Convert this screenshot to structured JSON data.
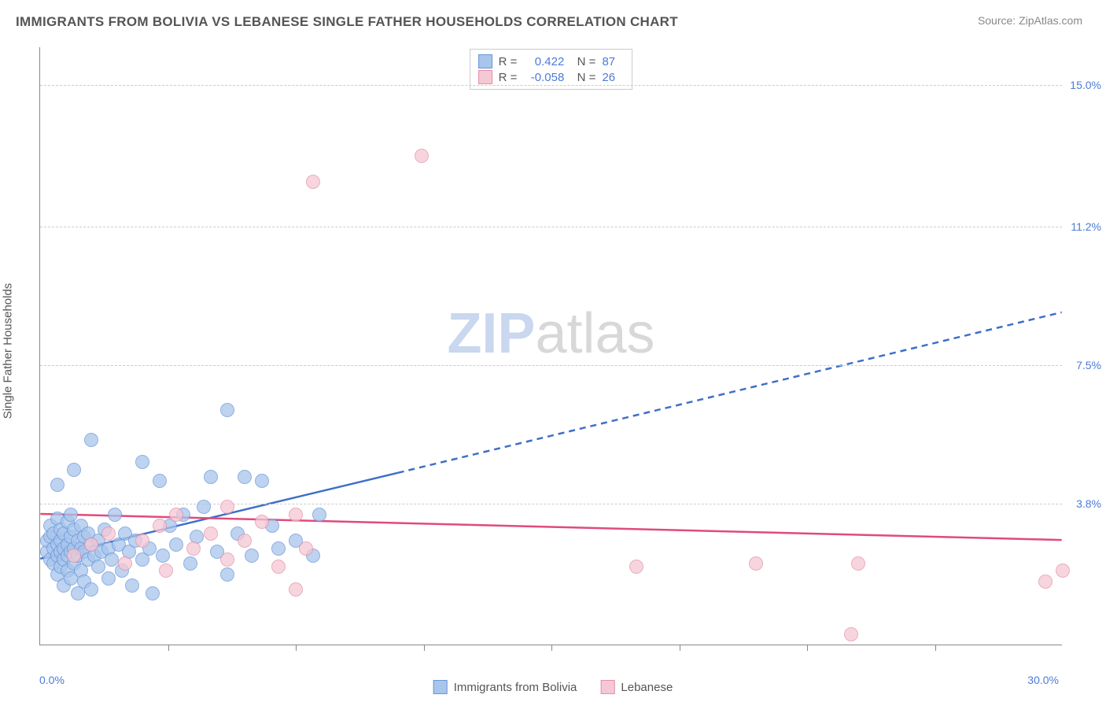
{
  "title": "IMMIGRANTS FROM BOLIVIA VS LEBANESE SINGLE FATHER HOUSEHOLDS CORRELATION CHART",
  "source": "Source: ZipAtlas.com",
  "ylabel": "Single Father Households",
  "watermark_a": "ZIP",
  "watermark_b": "atlas",
  "xlim": [
    0.0,
    30.0
  ],
  "ylim": [
    0.0,
    16.0
  ],
  "y_gridlines": [
    3.8,
    7.5,
    11.2,
    15.0
  ],
  "x_axis_labels": {
    "min": "0.0%",
    "max": "30.0%"
  },
  "xticks": [
    3.75,
    7.5,
    11.25,
    15.0,
    18.75,
    22.5,
    26.25
  ],
  "series": [
    {
      "key": "bolivia",
      "label": "Immigrants from Bolivia",
      "fill": "#a8c5ec",
      "stroke": "#6a97d9",
      "line_color": "#3f6fc7",
      "R": "0.422",
      "N": "87",
      "marker_r": 9,
      "trend_solid": {
        "x1": 0.0,
        "y1": 2.3,
        "x2": 10.5,
        "y2": 4.6
      },
      "trend_dashed": {
        "x1": 10.5,
        "y1": 4.6,
        "x2": 30.0,
        "y2": 8.9
      },
      "points": [
        [
          0.2,
          2.5
        ],
        [
          0.2,
          2.8
        ],
        [
          0.3,
          2.3
        ],
        [
          0.3,
          2.9
        ],
        [
          0.3,
          3.2
        ],
        [
          0.4,
          2.2
        ],
        [
          0.4,
          2.6
        ],
        [
          0.4,
          3.0
        ],
        [
          0.5,
          1.9
        ],
        [
          0.5,
          2.4
        ],
        [
          0.5,
          2.7
        ],
        [
          0.5,
          3.4
        ],
        [
          0.5,
          4.3
        ],
        [
          0.6,
          2.1
        ],
        [
          0.6,
          2.5
        ],
        [
          0.6,
          2.8
        ],
        [
          0.6,
          3.1
        ],
        [
          0.7,
          1.6
        ],
        [
          0.7,
          2.3
        ],
        [
          0.7,
          2.6
        ],
        [
          0.7,
          3.0
        ],
        [
          0.8,
          2.0
        ],
        [
          0.8,
          2.4
        ],
        [
          0.8,
          2.7
        ],
        [
          0.8,
          3.3
        ],
        [
          0.9,
          1.8
        ],
        [
          0.9,
          2.5
        ],
        [
          0.9,
          2.9
        ],
        [
          0.9,
          3.5
        ],
        [
          1.0,
          2.2
        ],
        [
          1.0,
          2.6
        ],
        [
          1.0,
          3.1
        ],
        [
          1.0,
          4.7
        ],
        [
          1.1,
          1.4
        ],
        [
          1.1,
          2.4
        ],
        [
          1.1,
          2.8
        ],
        [
          1.2,
          2.0
        ],
        [
          1.2,
          2.6
        ],
        [
          1.2,
          3.2
        ],
        [
          1.3,
          1.7
        ],
        [
          1.3,
          2.5
        ],
        [
          1.3,
          2.9
        ],
        [
          1.4,
          2.3
        ],
        [
          1.4,
          3.0
        ],
        [
          1.5,
          1.5
        ],
        [
          1.5,
          2.7
        ],
        [
          1.5,
          5.5
        ],
        [
          1.6,
          2.4
        ],
        [
          1.7,
          2.1
        ],
        [
          1.7,
          2.8
        ],
        [
          1.8,
          2.5
        ],
        [
          1.9,
          3.1
        ],
        [
          2.0,
          1.8
        ],
        [
          2.0,
          2.6
        ],
        [
          2.1,
          2.3
        ],
        [
          2.2,
          3.5
        ],
        [
          2.3,
          2.7
        ],
        [
          2.4,
          2.0
        ],
        [
          2.5,
          3.0
        ],
        [
          2.6,
          2.5
        ],
        [
          2.7,
          1.6
        ],
        [
          2.8,
          2.8
        ],
        [
          3.0,
          2.3
        ],
        [
          3.0,
          4.9
        ],
        [
          3.2,
          2.6
        ],
        [
          3.3,
          1.4
        ],
        [
          3.5,
          4.4
        ],
        [
          3.6,
          2.4
        ],
        [
          3.8,
          3.2
        ],
        [
          4.0,
          2.7
        ],
        [
          4.2,
          3.5
        ],
        [
          4.4,
          2.2
        ],
        [
          4.6,
          2.9
        ],
        [
          4.8,
          3.7
        ],
        [
          5.0,
          4.5
        ],
        [
          5.2,
          2.5
        ],
        [
          5.5,
          1.9
        ],
        [
          5.5,
          6.3
        ],
        [
          5.8,
          3.0
        ],
        [
          6.0,
          4.5
        ],
        [
          6.2,
          2.4
        ],
        [
          6.5,
          4.4
        ],
        [
          6.8,
          3.2
        ],
        [
          7.0,
          2.6
        ],
        [
          7.5,
          2.8
        ],
        [
          8.0,
          2.4
        ],
        [
          8.2,
          3.5
        ]
      ]
    },
    {
      "key": "lebanese",
      "label": "Lebanese",
      "fill": "#f5c8d4",
      "stroke": "#e68fa9",
      "line_color": "#e04b7b",
      "R": "-0.058",
      "N": "26",
      "marker_r": 9,
      "trend_solid": {
        "x1": 0.0,
        "y1": 3.5,
        "x2": 30.0,
        "y2": 2.8
      },
      "trend_dashed": null,
      "points": [
        [
          1.0,
          2.4
        ],
        [
          1.5,
          2.7
        ],
        [
          2.0,
          3.0
        ],
        [
          2.5,
          2.2
        ],
        [
          3.0,
          2.8
        ],
        [
          3.5,
          3.2
        ],
        [
          3.7,
          2.0
        ],
        [
          4.0,
          3.5
        ],
        [
          4.5,
          2.6
        ],
        [
          5.0,
          3.0
        ],
        [
          5.5,
          2.3
        ],
        [
          5.5,
          3.7
        ],
        [
          6.0,
          2.8
        ],
        [
          6.5,
          3.3
        ],
        [
          7.0,
          2.1
        ],
        [
          7.5,
          3.5
        ],
        [
          7.5,
          1.5
        ],
        [
          8.0,
          12.4
        ],
        [
          7.8,
          2.6
        ],
        [
          11.2,
          13.1
        ],
        [
          17.5,
          2.1
        ],
        [
          21.0,
          2.2
        ],
        [
          23.8,
          0.3
        ],
        [
          24.0,
          2.2
        ],
        [
          29.5,
          1.7
        ],
        [
          30.0,
          2.0
        ]
      ]
    }
  ],
  "styling": {
    "title_fontsize": 17,
    "axis_label_color": "#4b7bd6",
    "grid_color": "#cccccc",
    "axis_color": "#888888",
    "background": "#ffffff",
    "watermark_fontsize": 72
  }
}
